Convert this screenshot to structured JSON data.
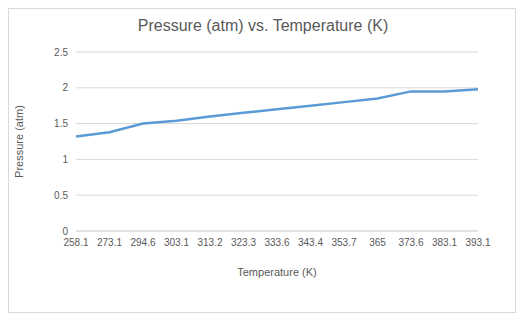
{
  "chart_data": {
    "type": "line",
    "title": "Pressure (atm) vs. Temperature (K)",
    "x_label": "Temperature (K)",
    "y_label": "Pressure (atm)",
    "categories": [
      "258.1",
      "273.1",
      "294.6",
      "303.1",
      "313.2",
      "323.3",
      "333.6",
      "343.4",
      "353.7",
      "365",
      "373.6",
      "383.1",
      "393.1"
    ],
    "values": [
      1.32,
      1.38,
      1.5,
      1.54,
      1.6,
      1.65,
      1.7,
      1.75,
      1.8,
      1.85,
      1.95,
      1.95,
      1.98
    ],
    "color": "#5b9bd5",
    "ylim": [
      0,
      2.5
    ],
    "yticks": [
      0,
      0.5,
      1,
      1.5,
      2,
      2.5
    ],
    "grid": true
  }
}
